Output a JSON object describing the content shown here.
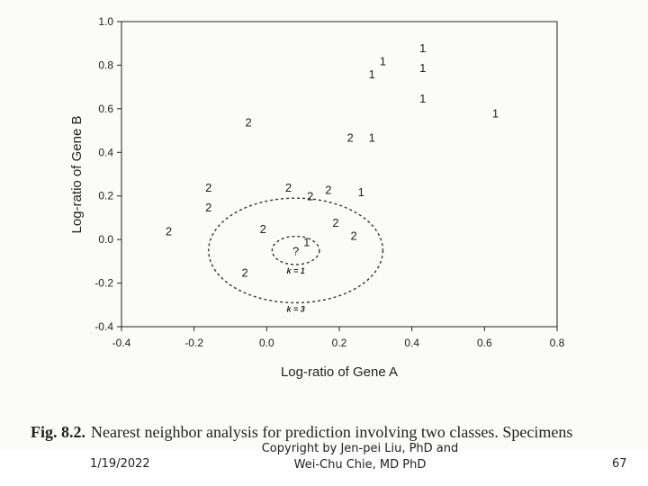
{
  "chart_data": {
    "type": "scatter",
    "xlabel": "Log-ratio of Gene A",
    "ylabel": "Log-ratio of Gene B",
    "xlim": [
      -0.4,
      0.8
    ],
    "ylim": [
      -0.4,
      1.0
    ],
    "xticks": [
      "-0.4",
      "-0.2",
      "0.0",
      "0.2",
      "0.4",
      "0.6",
      "0.8"
    ],
    "yticks": [
      "1.0",
      "0.8",
      "0.6",
      "0.4",
      "0.2",
      "0.0",
      "-0.2",
      "-0.4"
    ],
    "grid": false,
    "series": [
      {
        "name": "1",
        "points": [
          {
            "x": 0.43,
            "y": 0.88
          },
          {
            "x": 0.32,
            "y": 0.82
          },
          {
            "x": 0.29,
            "y": 0.76
          },
          {
            "x": 0.43,
            "y": 0.79
          },
          {
            "x": 0.43,
            "y": 0.65
          },
          {
            "x": 0.63,
            "y": 0.58
          },
          {
            "x": 0.29,
            "y": 0.47
          },
          {
            "x": 0.26,
            "y": 0.22
          },
          {
            "x": 0.11,
            "y": -0.01
          }
        ]
      },
      {
        "name": "2",
        "points": [
          {
            "x": -0.05,
            "y": 0.54
          },
          {
            "x": 0.23,
            "y": 0.47
          },
          {
            "x": -0.16,
            "y": 0.24
          },
          {
            "x": -0.16,
            "y": 0.15
          },
          {
            "x": -0.27,
            "y": 0.04
          },
          {
            "x": 0.06,
            "y": 0.24
          },
          {
            "x": 0.12,
            "y": 0.2
          },
          {
            "x": 0.17,
            "y": 0.23
          },
          {
            "x": 0.19,
            "y": 0.08
          },
          {
            "x": 0.24,
            "y": 0.02
          },
          {
            "x": -0.01,
            "y": 0.05
          },
          {
            "x": -0.06,
            "y": -0.15
          }
        ]
      }
    ],
    "query": {
      "x": 0.08,
      "y": -0.05,
      "label": "?"
    },
    "neighborhoods": [
      {
        "label": "k = 1",
        "radius": 0.065
      },
      {
        "label": "k = 3",
        "radius": 0.24
      }
    ]
  },
  "caption": {
    "fig_label": "Fig. 8.2.",
    "text": "Nearest neighbor analysis for prediction involving two classes. Specimens"
  },
  "footer": {
    "date": "1/19/2022",
    "copyright_line1": "Copyright by Jen-pei Liu, PhD and",
    "copyright_line2": "Wei-Chu Chie, MD PhD",
    "page_number": "67"
  }
}
